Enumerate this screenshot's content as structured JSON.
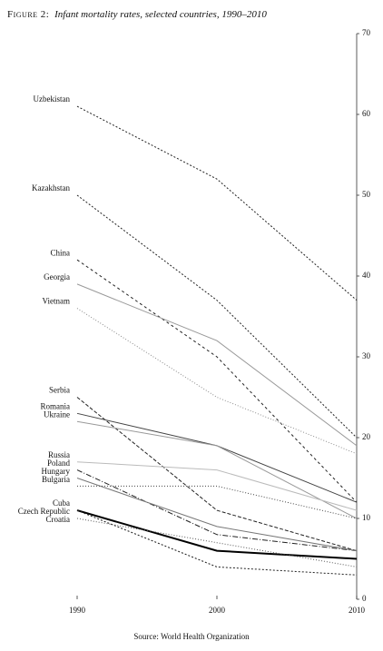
{
  "chart_data": {
    "type": "line",
    "title_label": "Figure 2:",
    "title": "Infant mortality rates, selected countries, 1990–2010",
    "source": "Source: World Health Organization",
    "x": [
      1990,
      2000,
      2010
    ],
    "xlim": [
      1990,
      2010
    ],
    "ylim": [
      0,
      70
    ],
    "yticks": [
      0,
      10,
      20,
      30,
      40,
      50,
      60,
      70
    ],
    "series": [
      {
        "name": "Uzbekistan",
        "color": "#222",
        "dash": "2,2",
        "values": [
          61,
          52,
          37
        ]
      },
      {
        "name": "Kazakhstan",
        "color": "#222",
        "dash": "2,2",
        "values": [
          50,
          37,
          20
        ]
      },
      {
        "name": "China",
        "color": "#222",
        "dash": "3,3",
        "values": [
          42,
          30,
          12
        ]
      },
      {
        "name": "Georgia",
        "color": "#999",
        "dash": "none",
        "values": [
          39,
          32,
          19
        ]
      },
      {
        "name": "Vietnam",
        "color": "#888",
        "dash": "1,2",
        "values": [
          36,
          25,
          18
        ]
      },
      {
        "name": "Serbia",
        "color": "#222",
        "dash": "4,2",
        "values": [
          25,
          11,
          6
        ]
      },
      {
        "name": "Romania",
        "color": "#444",
        "dash": "none",
        "values": [
          23,
          19,
          12
        ]
      },
      {
        "name": "Ukraine",
        "color": "#999",
        "dash": "none",
        "values": [
          22,
          19,
          10
        ]
      },
      {
        "name": "Russia",
        "color": "#bbb",
        "dash": "none",
        "values": [
          17,
          16,
          11
        ]
      },
      {
        "name": "Poland",
        "color": "#222",
        "dash": "6,2,1,2",
        "values": [
          16,
          8,
          6
        ]
      },
      {
        "name": "Hungary",
        "color": "#777",
        "dash": "none",
        "values": [
          15,
          9,
          6
        ]
      },
      {
        "name": "Bulgaria",
        "color": "#444",
        "dash": "1,2",
        "values": [
          14,
          14,
          10
        ]
      },
      {
        "name": "Cuba",
        "color": "#000",
        "dash": "none",
        "width": 2,
        "values": [
          11,
          6,
          5
        ]
      },
      {
        "name": "Czech Republic",
        "color": "#222",
        "dash": "2,2",
        "values": [
          11,
          4,
          3
        ]
      },
      {
        "name": "Croatia",
        "color": "#555",
        "dash": "1,2",
        "values": [
          10,
          7,
          4
        ]
      }
    ]
  }
}
